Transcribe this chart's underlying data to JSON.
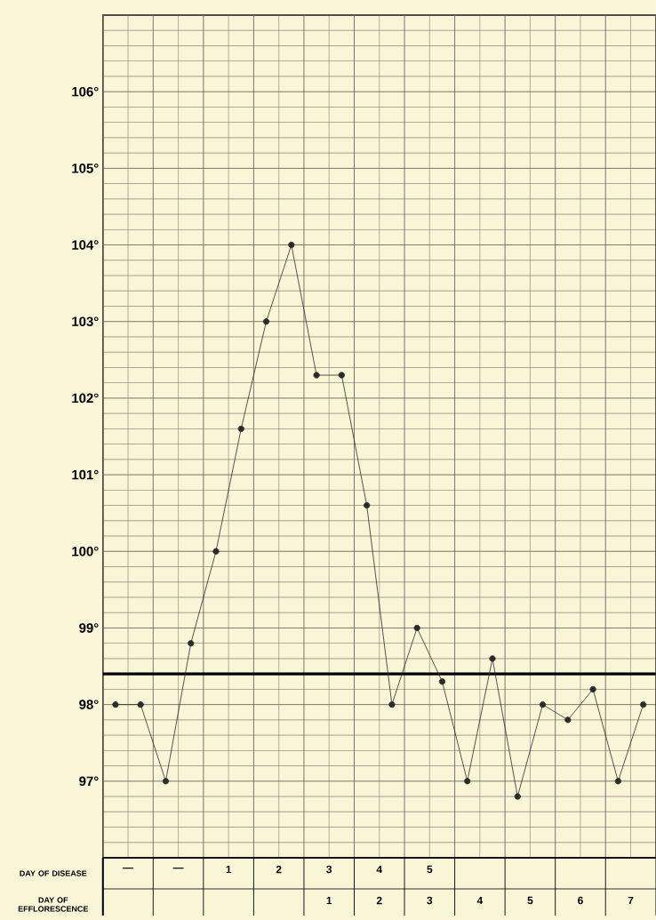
{
  "chart_data": {
    "type": "line",
    "xlabel": "DAY OF DISEASE",
    "x2label": "DAY OF EFFLORESCENCE",
    "x": [
      -1.25,
      -0.75,
      -0.25,
      0.25,
      0.75,
      1.25,
      1.75,
      2.25,
      2.75,
      3.25,
      3.75,
      4.25,
      4.75,
      5.25,
      5.75,
      6.25,
      6.75,
      7.25,
      7.75,
      8.25,
      8.75,
      9.25
    ],
    "values": [
      98.0,
      98.0,
      97.0,
      98.8,
      100.0,
      101.6,
      103.0,
      104.0,
      102.3,
      102.3,
      100.6,
      98.0,
      99.0,
      98.3,
      97.0,
      98.6,
      96.8,
      98.0,
      97.8,
      98.2,
      97.0,
      98.0
    ],
    "color": "#2b2b2b",
    "marker": "circle",
    "line_style": "solid",
    "xlim": [
      -1.5,
      9.5
    ],
    "xticks": [
      {
        "value": -1,
        "label": "—"
      },
      {
        "value": 0,
        "label": "—"
      },
      1,
      2,
      3,
      4,
      5
    ],
    "x2lim": [
      -3.5,
      7.5
    ],
    "x2ticks": [
      1,
      2,
      3,
      4,
      5,
      6,
      7
    ],
    "ylim": [
      96,
      107
    ],
    "yticks": [
      {
        "value": 97,
        "label": "97°"
      },
      {
        "value": 98,
        "label": "98°"
      },
      {
        "value": 99,
        "label": "99°"
      },
      {
        "value": 100,
        "label": "100°"
      },
      {
        "value": 101,
        "label": "101°"
      },
      {
        "value": 102,
        "label": "102°"
      },
      {
        "value": 103,
        "label": "103°"
      },
      {
        "value": 104,
        "label": "104°"
      },
      {
        "value": 105,
        "label": "105°"
      },
      {
        "value": 106,
        "label": "106°"
      }
    ],
    "grid": true,
    "ref_lines": [
      {
        "axis": "y",
        "value": 98.4
      }
    ]
  }
}
